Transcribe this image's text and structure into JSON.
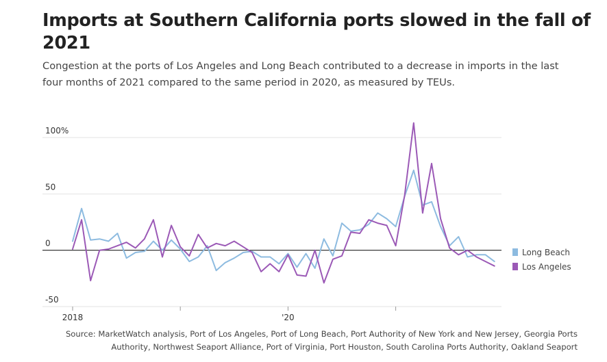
{
  "title": "Imports at Southern California ports slowed in the fall of 2021",
  "subtitle": "Congestion at the ports of Los Angeles and Long Beach contributed to a decrease in imports in the last four months of 2021 compared to the same period in 2020, as measured by TEUs.",
  "source": "Source: MarketWatch analysis, Port of Los Angeles, Port of Long Beach, Port Authority of New York and New Jersey, Georgia Ports Authority, Northwest Seaport Alliance, Port of Virginia, Port Houston, South Carolina Ports Authority, Oakland Seaport",
  "chart_data": {
    "type": "line",
    "ylim": [
      -50,
      100
    ],
    "y_ticks": [
      {
        "value": 100,
        "label": "100%"
      },
      {
        "value": 50,
        "label": "50"
      },
      {
        "value": 0,
        "label": "0"
      },
      {
        "value": -50,
        "label": "-50"
      }
    ],
    "x_ticks": [
      {
        "month_index": 0,
        "label": "2018"
      },
      {
        "month_index": 12,
        "label": ""
      },
      {
        "month_index": 24,
        "label": "'20"
      },
      {
        "month_index": 36,
        "label": ""
      }
    ],
    "grid": true,
    "legend_position": "right",
    "series": [
      {
        "name": "Long Beach",
        "color": "#8dbbe0",
        "values": [
          8,
          37,
          9,
          10,
          8,
          15,
          -7,
          -2,
          -1,
          8,
          0,
          9,
          1,
          -10,
          -6,
          4,
          -18,
          -11,
          -7,
          -2,
          -1,
          -6,
          -6,
          -12,
          -3,
          -15,
          -3,
          -16,
          10,
          -5,
          24,
          17,
          18,
          23,
          33,
          28,
          21,
          48,
          71,
          40,
          43,
          21,
          4,
          12,
          -6,
          -4,
          -4,
          -10
        ]
      },
      {
        "name": "Los Angeles",
        "color": "#9b59b6",
        "values": [
          1,
          27,
          -27,
          0,
          1,
          4,
          7,
          2,
          10,
          27,
          -6,
          22,
          3,
          -5,
          14,
          2,
          6,
          4,
          8,
          3,
          -2,
          -19,
          -12,
          -19,
          -4,
          -22,
          -23,
          0,
          -29,
          -8,
          -5,
          16,
          15,
          27,
          24,
          22,
          4,
          49,
          113,
          33,
          77,
          28,
          2,
          -4,
          0,
          -6,
          -10,
          -14
        ]
      }
    ]
  }
}
